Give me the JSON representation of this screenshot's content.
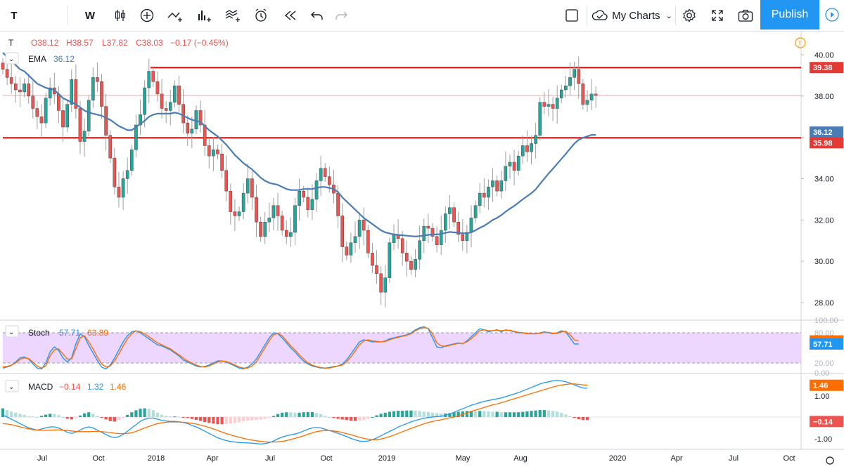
{
  "toolbar": {
    "symbol": "T",
    "interval": "W",
    "my_charts_label": "My Charts",
    "publish_label": "Publish",
    "icons": [
      "candles-icon",
      "add-icon",
      "indicators-icon",
      "bar-style-icon",
      "templates-icon",
      "alert-icon",
      "replay-icon",
      "undo-icon",
      "redo-icon",
      "fullscreen-icon",
      "camera-icon",
      "settings-icon",
      "cloud-icon",
      "layout-icon"
    ]
  },
  "legend": {
    "symbol": "T",
    "open": "O38.12",
    "high": "H38.57",
    "low": "L37.82",
    "close": "C38.03",
    "change": "−0.17 (−0.45%)",
    "ema_label": "EMA",
    "ema_value": "36.12",
    "stoch_label": "Stoch",
    "stoch_k": "57.71",
    "stoch_d": "63.89",
    "macd_label": "MACD",
    "macd_hist": "−0.14",
    "macd_line": "1.32",
    "macd_signal": "1.46"
  },
  "colors": {
    "up": "#26a69a",
    "down": "#ef5350",
    "ema": "#4a7db5",
    "hline": "#ff0000",
    "stoch_k": "#2196f3",
    "stoch_d": "#ff6d00",
    "stoch_band": "#e7c9ff",
    "macd_line": "#2196f3",
    "macd_signal": "#ff6d00",
    "accent": "#2196f3"
  },
  "chart_data": [
    {
      "type": "candlestick",
      "title": "T",
      "interval": "W",
      "x_labels": [
        "Jul",
        "Oct",
        "2018",
        "Apr",
        "Jul",
        "Oct",
        "2019",
        "May",
        "Aug",
        "2020",
        "Apr",
        "Jul",
        "Oct"
      ],
      "y_ticks": [
        "40.00",
        "38.00",
        "36.00",
        "34.00",
        "32.00",
        "30.00",
        "28.00"
      ],
      "ylim": [
        26.0,
        40.4
      ],
      "close_series": [
        39.3,
        38.9,
        38.6,
        38.3,
        38.2,
        38.6,
        38.0,
        37.4,
        37.0,
        36.7,
        37.9,
        38.4,
        38.1,
        37.3,
        36.5,
        37.6,
        38.8,
        37.4,
        35.8,
        36.3,
        37.8,
        38.9,
        38.7,
        37.5,
        36.1,
        35.0,
        33.6,
        33.1,
        34.0,
        34.4,
        35.4,
        36.6,
        37.1,
        38.4,
        39.2,
        38.7,
        38.1,
        37.4,
        37.3,
        37.7,
        38.5,
        37.6,
        36.7,
        36.2,
        36.4,
        37.3,
        36.6,
        35.6,
        35.1,
        35.4,
        35.2,
        34.4,
        33.4,
        32.4,
        32.2,
        32.4,
        33.3,
        34.0,
        33.1,
        31.9,
        31.2,
        31.9,
        32.1,
        32.7,
        32.2,
        31.5,
        31.2,
        31.4,
        32.7,
        33.4,
        33.1,
        32.5,
        33.0,
        33.9,
        34.5,
        34.1,
        33.7,
        33.3,
        32.2,
        30.7,
        30.3,
        30.9,
        31.2,
        32.0,
        31.5,
        30.4,
        29.8,
        29.4,
        28.5,
        29.2,
        30.9,
        31.3,
        31.1,
        30.4,
        30.0,
        29.6,
        30.1,
        31.0,
        31.7,
        31.6,
        31.2,
        30.8,
        31.5,
        32.3,
        32.6,
        31.9,
        31.3,
        31.0,
        31.4,
        32.1,
        32.7,
        33.3,
        33.1,
        33.6,
        33.9,
        33.4,
        33.9,
        34.6,
        34.8,
        34.4,
        35.1,
        35.6,
        35.3,
        35.7,
        36.1,
        37.7,
        37.5,
        37.6,
        37.4,
        37.9,
        38.3,
        38.5,
        38.9,
        39.3,
        38.6,
        37.6,
        37.8,
        38.1,
        38.03
      ],
      "ema_series": [
        40.1,
        39.9,
        39.7,
        39.5,
        39.3,
        39.2,
        39.0,
        38.8,
        38.6,
        38.5,
        38.4,
        38.35,
        38.3,
        38.1,
        37.9,
        37.8,
        37.7,
        37.6,
        37.45,
        37.3,
        37.2,
        37.15,
        37.1,
        37.05,
        36.95,
        36.85,
        36.7,
        36.55,
        36.45,
        36.35,
        36.35,
        36.5,
        36.65,
        36.8,
        37.0,
        37.1,
        37.15,
        37.15,
        37.15,
        37.15,
        37.2,
        37.15,
        37.05,
        36.95,
        36.85,
        36.8,
        36.75,
        36.55,
        36.35,
        36.2,
        36.05,
        35.85,
        35.65,
        35.4,
        35.15,
        34.95,
        34.75,
        34.6,
        34.45,
        34.25,
        34.05,
        33.9,
        33.8,
        33.75,
        33.7,
        33.6,
        33.5,
        33.45,
        33.45,
        33.45,
        33.5,
        33.5,
        33.5,
        33.55,
        33.6,
        33.6,
        33.55,
        33.5,
        33.35,
        33.1,
        32.9,
        32.7,
        32.5,
        32.3,
        32.1,
        31.95,
        31.8,
        31.65,
        31.5,
        31.4,
        31.35,
        31.3,
        31.28,
        31.26,
        31.24,
        31.22,
        31.2,
        31.22,
        31.25,
        31.28,
        31.3,
        31.3,
        31.32,
        31.38,
        31.42,
        31.4,
        31.38,
        31.36,
        31.36,
        31.4,
        31.5,
        31.62,
        31.72,
        31.85,
        32.0,
        32.1,
        32.24,
        32.4,
        32.55,
        32.68,
        32.84,
        33.0,
        33.15,
        33.3,
        33.48,
        33.75,
        34.0,
        34.25,
        34.48,
        34.72,
        34.96,
        35.2,
        35.45,
        35.7,
        35.88,
        35.98,
        36.05,
        36.12,
        36.12
      ],
      "resistance": 39.38,
      "support": 35.98,
      "price_labels": [
        "39.38",
        "36.12",
        "35.98"
      ]
    },
    {
      "type": "line",
      "title": "Stoch",
      "y_ticks": [
        "100.00",
        "80.00",
        "20.00",
        "0.00"
      ],
      "ylim": [
        0,
        100
      ],
      "band": [
        20,
        80
      ],
      "series": [
        {
          "name": "57.71",
          "values": [
            10,
            12,
            15,
            22,
            30,
            32,
            28,
            18,
            10,
            8,
            20,
            42,
            52,
            45,
            30,
            22,
            30,
            58,
            78,
            72,
            55,
            40,
            25,
            12,
            8,
            16,
            30,
            46,
            62,
            74,
            82,
            84,
            80,
            74,
            68,
            62,
            56,
            54,
            50,
            46,
            40,
            34,
            26,
            22,
            18,
            14,
            12,
            13,
            16,
            20,
            24,
            24,
            22,
            18,
            14,
            10,
            8,
            12,
            18,
            28,
            42,
            56,
            70,
            80,
            78,
            70,
            60,
            50,
            42,
            32,
            24,
            18,
            14,
            12,
            10,
            10,
            11,
            13,
            14,
            18,
            26,
            38,
            50,
            62,
            66,
            64,
            62,
            62,
            62,
            64,
            68,
            70,
            72,
            74,
            76,
            80,
            86,
            90,
            92,
            88,
            70,
            52,
            50,
            54,
            56,
            58,
            60,
            58,
            64,
            72,
            80,
            88,
            86,
            82,
            84,
            86,
            82,
            86,
            84,
            82,
            80,
            80,
            78,
            78,
            78,
            80,
            82,
            80,
            78,
            80,
            84,
            82,
            70,
            58,
            57.71
          ]
        },
        {
          "name": "63.89",
          "values": [
            12,
            13,
            16,
            20,
            27,
            30,
            29,
            22,
            14,
            10,
            14,
            34,
            46,
            48,
            38,
            28,
            28,
            48,
            70,
            74,
            62,
            48,
            32,
            18,
            12,
            14,
            24,
            38,
            54,
            68,
            78,
            84,
            82,
            78,
            72,
            66,
            60,
            56,
            52,
            48,
            42,
            36,
            30,
            24,
            20,
            16,
            13,
            12,
            14,
            18,
            22,
            24,
            23,
            20,
            16,
            12,
            10,
            10,
            14,
            22,
            36,
            50,
            64,
            76,
            79,
            74,
            64,
            54,
            46,
            36,
            28,
            20,
            16,
            13,
            11,
            10,
            10,
            12,
            14,
            16,
            22,
            32,
            44,
            56,
            64,
            66,
            64,
            63,
            62,
            63,
            66,
            69,
            71,
            73,
            75,
            78,
            84,
            88,
            90,
            89,
            78,
            60,
            54,
            53,
            55,
            57,
            59,
            59,
            62,
            68,
            76,
            84,
            86,
            84,
            84,
            85,
            84,
            85,
            85,
            83,
            81,
            80,
            79,
            78,
            78,
            79,
            81,
            81,
            79,
            79,
            82,
            83,
            76,
            66,
            63.89
          ]
        }
      ]
    },
    {
      "type": "line",
      "title": "MACD",
      "y_ticks": [
        "1.00",
        "-1.00"
      ],
      "ylim": [
        -1.4,
        1.9
      ],
      "series": [
        {
          "name": "1.32",
          "values": [
            0.1,
            0.0,
            -0.1,
            -0.2,
            -0.3,
            -0.4,
            -0.5,
            -0.55,
            -0.6,
            -0.55,
            -0.5,
            -0.45,
            -0.45,
            -0.5,
            -0.6,
            -0.7,
            -0.75,
            -0.7,
            -0.6,
            -0.5,
            -0.45,
            -0.5,
            -0.6,
            -0.7,
            -0.8,
            -0.9,
            -0.95,
            -0.9,
            -0.8,
            -0.65,
            -0.5,
            -0.35,
            -0.2,
            -0.1,
            -0.05,
            -0.05,
            -0.1,
            -0.15,
            -0.18,
            -0.2,
            -0.2,
            -0.22,
            -0.25,
            -0.3,
            -0.38,
            -0.45,
            -0.55,
            -0.65,
            -0.75,
            -0.85,
            -0.95,
            -1.02,
            -1.08,
            -1.12,
            -1.15,
            -1.17,
            -1.18,
            -1.19,
            -1.2,
            -1.22,
            -1.24,
            -1.22,
            -1.18,
            -1.1,
            -1.0,
            -0.92,
            -0.86,
            -0.82,
            -0.78,
            -0.72,
            -0.64,
            -0.56,
            -0.5,
            -0.48,
            -0.5,
            -0.56,
            -0.62,
            -0.68,
            -0.75,
            -0.82,
            -0.9,
            -0.98,
            -1.05,
            -1.1,
            -1.12,
            -1.1,
            -1.04,
            -0.96,
            -0.86,
            -0.76,
            -0.66,
            -0.56,
            -0.46,
            -0.38,
            -0.3,
            -0.22,
            -0.16,
            -0.1,
            -0.06,
            -0.02,
            0.0,
            0.02,
            0.04,
            0.08,
            0.14,
            0.22,
            0.3,
            0.38,
            0.46,
            0.54,
            0.6,
            0.66,
            0.72,
            0.76,
            0.8,
            0.84,
            0.88,
            0.94,
            1.0,
            1.06,
            1.12,
            1.2,
            1.28,
            1.36,
            1.44,
            1.52,
            1.58,
            1.62,
            1.66,
            1.68,
            1.66,
            1.62,
            1.56,
            1.48,
            1.4,
            1.34,
            1.32
          ]
        },
        {
          "name": "1.46",
          "values": [
            -0.3,
            -0.32,
            -0.35,
            -0.4,
            -0.45,
            -0.5,
            -0.54,
            -0.58,
            -0.6,
            -0.61,
            -0.61,
            -0.6,
            -0.59,
            -0.59,
            -0.6,
            -0.62,
            -0.64,
            -0.66,
            -0.67,
            -0.67,
            -0.67,
            -0.66,
            -0.66,
            -0.67,
            -0.69,
            -0.71,
            -0.74,
            -0.76,
            -0.76,
            -0.75,
            -0.72,
            -0.66,
            -0.58,
            -0.5,
            -0.43,
            -0.36,
            -0.3,
            -0.26,
            -0.24,
            -0.23,
            -0.23,
            -0.23,
            -0.24,
            -0.26,
            -0.29,
            -0.32,
            -0.37,
            -0.42,
            -0.48,
            -0.55,
            -0.62,
            -0.69,
            -0.76,
            -0.82,
            -0.88,
            -0.93,
            -0.98,
            -1.02,
            -1.06,
            -1.09,
            -1.12,
            -1.14,
            -1.15,
            -1.15,
            -1.14,
            -1.12,
            -1.08,
            -1.03,
            -0.98,
            -0.92,
            -0.86,
            -0.79,
            -0.73,
            -0.67,
            -0.64,
            -0.62,
            -0.62,
            -0.64,
            -0.67,
            -0.71,
            -0.76,
            -0.81,
            -0.87,
            -0.93,
            -0.98,
            -1.02,
            -1.04,
            -1.04,
            -1.01,
            -0.96,
            -0.9,
            -0.83,
            -0.75,
            -0.67,
            -0.6,
            -0.52,
            -0.45,
            -0.38,
            -0.31,
            -0.25,
            -0.2,
            -0.16,
            -0.12,
            -0.08,
            -0.04,
            0.0,
            0.06,
            0.12,
            0.18,
            0.26,
            0.32,
            0.38,
            0.44,
            0.5,
            0.56,
            0.6,
            0.66,
            0.72,
            0.78,
            0.84,
            0.9,
            0.96,
            1.02,
            1.08,
            1.14,
            1.2,
            1.26,
            1.32,
            1.38,
            1.43,
            1.47,
            1.5,
            1.52,
            1.52,
            1.5,
            1.48,
            1.46
          ]
        }
      ]
    }
  ]
}
